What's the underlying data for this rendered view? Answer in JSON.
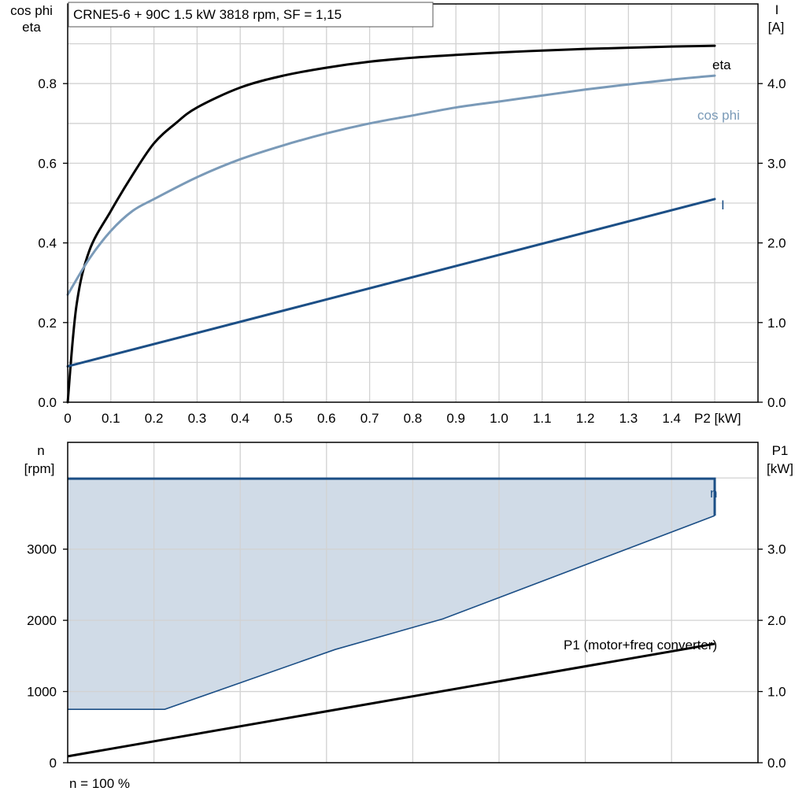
{
  "chart_data": [
    {
      "type": "line",
      "title": "CRNE5-6 + 90C   1.5 kW   3818 rpm, SF = 1,15",
      "xlabel": "P2 [kW]",
      "ylabel_left": [
        "cos phi",
        "eta"
      ],
      "ylabel_right": [
        "I",
        "[A]"
      ],
      "xlim": [
        0,
        1.5
      ],
      "ylim_left": [
        0,
        1.0
      ],
      "ylim_right": [
        0,
        5.0
      ],
      "grid": true,
      "x_ticks": [
        "0",
        "0.1",
        "0.2",
        "0.3",
        "0.4",
        "0.5",
        "0.6",
        "0.7",
        "0.8",
        "0.9",
        "1.0",
        "1.1",
        "1.2",
        "1.3",
        "1.4"
      ],
      "y_ticks_left": [
        "0.0",
        "0.2",
        "0.4",
        "0.6",
        "0.8"
      ],
      "y_ticks_right": [
        "0.0",
        "1.0",
        "2.0",
        "3.0",
        "4.0"
      ],
      "series": [
        {
          "name": "eta",
          "axis": "left",
          "color": "#000000",
          "points": [
            [
              0,
              0
            ],
            [
              0.02,
              0.24
            ],
            [
              0.05,
              0.38
            ],
            [
              0.1,
              0.48
            ],
            [
              0.15,
              0.57
            ],
            [
              0.2,
              0.65
            ],
            [
              0.25,
              0.7
            ],
            [
              0.3,
              0.74
            ],
            [
              0.4,
              0.79
            ],
            [
              0.5,
              0.82
            ],
            [
              0.6,
              0.84
            ],
            [
              0.7,
              0.855
            ],
            [
              0.8,
              0.865
            ],
            [
              0.9,
              0.872
            ],
            [
              1.0,
              0.878
            ],
            [
              1.1,
              0.883
            ],
            [
              1.2,
              0.887
            ],
            [
              1.3,
              0.89
            ],
            [
              1.4,
              0.893
            ],
            [
              1.5,
              0.895
            ]
          ]
        },
        {
          "name": "cos phi",
          "axis": "left",
          "color": "#7a9ab8",
          "points": [
            [
              0,
              0.27
            ],
            [
              0.05,
              0.36
            ],
            [
              0.1,
              0.43
            ],
            [
              0.15,
              0.48
            ],
            [
              0.2,
              0.51
            ],
            [
              0.3,
              0.565
            ],
            [
              0.4,
              0.61
            ],
            [
              0.5,
              0.645
            ],
            [
              0.6,
              0.675
            ],
            [
              0.7,
              0.7
            ],
            [
              0.8,
              0.72
            ],
            [
              0.9,
              0.74
            ],
            [
              1.0,
              0.755
            ],
            [
              1.1,
              0.77
            ],
            [
              1.2,
              0.785
            ],
            [
              1.3,
              0.798
            ],
            [
              1.4,
              0.81
            ],
            [
              1.5,
              0.82
            ]
          ]
        },
        {
          "name": "I",
          "axis": "right",
          "color": "#1c4f86",
          "points": [
            [
              0,
              0.45
            ],
            [
              0.5,
              1.15
            ],
            [
              1.0,
              1.85
            ],
            [
              1.5,
              2.55
            ]
          ]
        }
      ]
    },
    {
      "type": "area",
      "xlim": [
        0,
        1.5
      ],
      "ylabel_left": [
        "n",
        "[rpm]"
      ],
      "ylabel_right": [
        "P1",
        "[kW]"
      ],
      "ylim_left": [
        0,
        4500
      ],
      "ylim_right": [
        0,
        4.5
      ],
      "grid": true,
      "y_ticks_left": [
        "0",
        "1000",
        "2000",
        "3000"
      ],
      "y_ticks_right": [
        "0.0",
        "1.0",
        "2.0",
        "3.0"
      ],
      "footer": "n = 100 %",
      "series": [
        {
          "name": "n",
          "axis": "left",
          "color": "#1c4f86",
          "upper": [
            [
              0,
              3990
            ],
            [
              1.5,
              3990
            ]
          ],
          "lower": [
            [
              0,
              750
            ],
            [
              0.225,
              750
            ],
            [
              0.62,
              1590
            ],
            [
              0.87,
              2020
            ],
            [
              1.5,
              3470
            ]
          ],
          "fill": "#d0dbe7"
        },
        {
          "name": "P1 (motor+freq converter)",
          "axis": "right",
          "color": "#000000",
          "points": [
            [
              0,
              0.09
            ],
            [
              1.5,
              1.67
            ]
          ]
        }
      ]
    }
  ]
}
